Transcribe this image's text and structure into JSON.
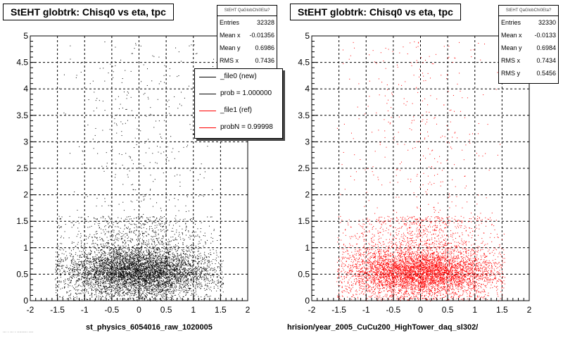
{
  "panels": [
    {
      "title": "StEHT globtrk: Chisq0 vs eta, tpc",
      "stats": {
        "header": "StEHT QaGlobChi0Eta?",
        "rows": [
          {
            "label": "Entries",
            "value": "32328"
          },
          {
            "label": "Mean x",
            "value": "-0.01356"
          },
          {
            "label": "Mean y",
            "value": "0.6986"
          },
          {
            "label": "RMS x",
            "value": "0.7436"
          }
        ]
      },
      "legend": [
        {
          "label": "_file0 (new)",
          "color": "#000000"
        },
        {
          "label": "prob = 1.000000",
          "color": "#000000"
        },
        {
          "label": "_file1 (ref)",
          "color": "#ff0000"
        },
        {
          "label": "probN = 0.99998",
          "color": "#ff0000"
        }
      ],
      "xtitle": "st_physics_6054016_raw_1020005"
    },
    {
      "title": "StEHT globtrk: Chisq0 vs eta, tpc",
      "stats": {
        "header": "StEHT QaGlobChi0Eta?",
        "rows": [
          {
            "label": "Entries",
            "value": "32330"
          },
          {
            "label": "Mean x",
            "value": "-0.0133"
          },
          {
            "label": "Mean y",
            "value": "0.6984"
          },
          {
            "label": "RMS x",
            "value": "0.7434"
          },
          {
            "label": "RMS y",
            "value": "0.5456"
          }
        ]
      },
      "xtitle": "hrision/year_2005_CuCu200_HighTower_daq_sl302/"
    }
  ],
  "footer": "... . ... . ......... ....",
  "chart_data": [
    {
      "type": "scatter",
      "title": "StEHT globtrk: Chisq0 vs eta, tpc",
      "xlabel": "st_physics_6054016_raw_1020005",
      "ylabel": "",
      "xlim": [
        -2,
        2
      ],
      "ylim": [
        0,
        5
      ],
      "xticks": [
        "-2",
        "-1.5",
        "-1",
        "-0.5",
        "0",
        "0.5",
        "1",
        "1.5",
        "2"
      ],
      "yticks": [
        "0",
        "0.5",
        "1",
        "1.5",
        "2",
        "2.5",
        "3",
        "3.5",
        "4",
        "4.5",
        "5"
      ],
      "grid": true,
      "color": "#000000",
      "entries": 32328,
      "mean_x": -0.01356,
      "mean_y": 0.6986,
      "rms_x": 0.7436,
      "legend_position": "top-right"
    },
    {
      "type": "scatter",
      "title": "StEHT globtrk: Chisq0 vs eta, tpc",
      "xlabel": "hrision/year_2005_CuCu200_HighTower_daq_sl302/",
      "ylabel": "",
      "xlim": [
        -2,
        2
      ],
      "ylim": [
        0,
        5
      ],
      "xticks": [
        "-2",
        "-1.5",
        "-1",
        "-0.5",
        "0",
        "0.5",
        "1",
        "1.5",
        "2"
      ],
      "yticks": [
        "0",
        "0.5",
        "1",
        "1.5",
        "2",
        "2.5",
        "3",
        "3.5",
        "4",
        "4.5",
        "5"
      ],
      "grid": true,
      "color": "#ff0000",
      "entries": 32330,
      "mean_x": -0.0133,
      "mean_y": 0.6984,
      "rms_x": 0.7434,
      "rms_y": 0.5456
    }
  ]
}
